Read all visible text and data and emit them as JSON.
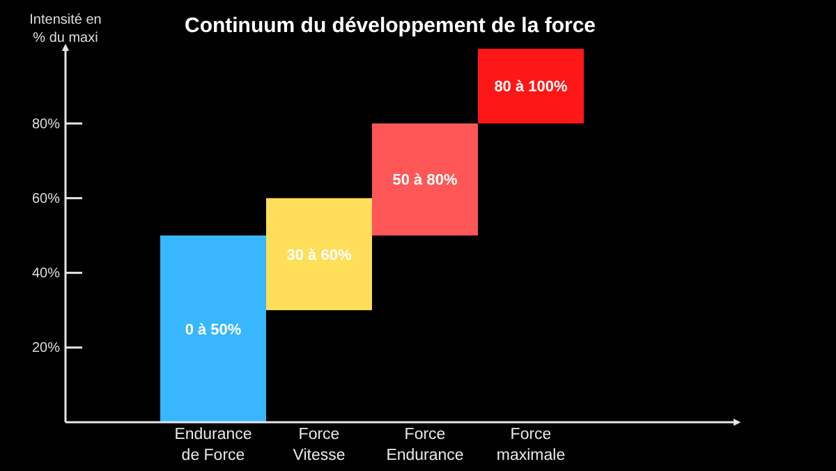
{
  "chart_data": {
    "type": "bar",
    "title": "Continuum du développement de la force",
    "ylabel": "Intensité en % du maxi",
    "categories": [
      "Endurance de Force",
      "Force Vitesse",
      "Force Endurance",
      "Force maximale"
    ],
    "base": [
      0,
      30,
      50,
      80
    ],
    "values": [
      50,
      30,
      30,
      20
    ],
    "colors": [
      "#38b6ff",
      "#ffde59",
      "#ff5757",
      "#ff1616"
    ],
    "annotations": [
      "0 à 50%",
      "30 à 60%",
      "50 à 80%",
      "80 à 100%"
    ],
    "ylim": [
      0,
      100
    ],
    "yticks": [
      {
        "value": 20,
        "label": "20%"
      },
      {
        "value": 40,
        "label": "40%"
      },
      {
        "value": 60,
        "label": "60%"
      },
      {
        "value": 80,
        "label": "80%"
      }
    ],
    "grid": false
  }
}
